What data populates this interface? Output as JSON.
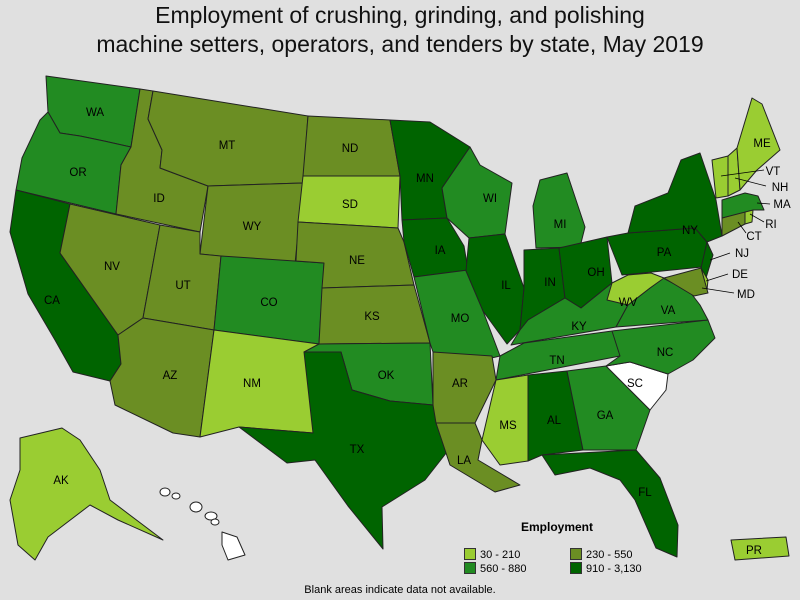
{
  "title_lines": [
    "Employment of crushing, grinding, and polishing",
    "machine setters, operators, and tenders by state, May 2019"
  ],
  "legend": {
    "title": "Employment",
    "ranges": [
      {
        "label": "30 - 210",
        "color": "#9acd32"
      },
      {
        "label": "230 - 550",
        "color": "#6b8e23"
      },
      {
        "label": "560 - 880",
        "color": "#228b22"
      },
      {
        "label": "910 - 3,130",
        "color": "#006400"
      }
    ],
    "no_data_color": "#ffffff"
  },
  "footnote": "Blank areas indicate data not available.",
  "states": [
    {
      "abbr": "WA",
      "range": "560 - 880"
    },
    {
      "abbr": "OR",
      "range": "560 - 880"
    },
    {
      "abbr": "CA",
      "range": "910 - 3,130"
    },
    {
      "abbr": "ID",
      "range": "230 - 550"
    },
    {
      "abbr": "NV",
      "range": "230 - 550"
    },
    {
      "abbr": "MT",
      "range": "230 - 550"
    },
    {
      "abbr": "WY",
      "range": "230 - 550"
    },
    {
      "abbr": "UT",
      "range": "230 - 550"
    },
    {
      "abbr": "AZ",
      "range": "230 - 550"
    },
    {
      "abbr": "CO",
      "range": "560 - 880"
    },
    {
      "abbr": "NM",
      "range": "30 - 210"
    },
    {
      "abbr": "ND",
      "range": "230 - 550"
    },
    {
      "abbr": "SD",
      "range": "30 - 210"
    },
    {
      "abbr": "NE",
      "range": "230 - 550"
    },
    {
      "abbr": "KS",
      "range": "230 - 550"
    },
    {
      "abbr": "OK",
      "range": "560 - 880"
    },
    {
      "abbr": "TX",
      "range": "910 - 3,130"
    },
    {
      "abbr": "MN",
      "range": "910 - 3,130"
    },
    {
      "abbr": "IA",
      "range": "910 - 3,130"
    },
    {
      "abbr": "MO",
      "range": "560 - 880"
    },
    {
      "abbr": "AR",
      "range": "230 - 550"
    },
    {
      "abbr": "LA",
      "range": "230 - 550"
    },
    {
      "abbr": "WI",
      "range": "560 - 880"
    },
    {
      "abbr": "IL",
      "range": "910 - 3,130"
    },
    {
      "abbr": "MI",
      "range": "560 - 880"
    },
    {
      "abbr": "IN",
      "range": "910 - 3,130"
    },
    {
      "abbr": "OH",
      "range": "910 - 3,130"
    },
    {
      "abbr": "KY",
      "range": "560 - 880"
    },
    {
      "abbr": "TN",
      "range": "560 - 880"
    },
    {
      "abbr": "MS",
      "range": "30 - 210"
    },
    {
      "abbr": "AL",
      "range": "910 - 3,130"
    },
    {
      "abbr": "GA",
      "range": "560 - 880"
    },
    {
      "abbr": "FL",
      "range": "910 - 3,130"
    },
    {
      "abbr": "SC",
      "range": null
    },
    {
      "abbr": "NC",
      "range": "560 - 880"
    },
    {
      "abbr": "VA",
      "range": "560 - 880"
    },
    {
      "abbr": "WV",
      "range": "30 - 210"
    },
    {
      "abbr": "PA",
      "range": "910 - 3,130"
    },
    {
      "abbr": "NY",
      "range": "910 - 3,130"
    },
    {
      "abbr": "NJ",
      "range": "910 - 3,130"
    },
    {
      "abbr": "DE",
      "range": "30 - 210"
    },
    {
      "abbr": "MD",
      "range": "230 - 550"
    },
    {
      "abbr": "CT",
      "range": "230 - 550"
    },
    {
      "abbr": "RI",
      "range": "30 - 210"
    },
    {
      "abbr": "MA",
      "range": "560 - 880"
    },
    {
      "abbr": "VT",
      "range": "30 - 210"
    },
    {
      "abbr": "NH",
      "range": "30 - 210"
    },
    {
      "abbr": "ME",
      "range": "30 - 210"
    },
    {
      "abbr": "AK",
      "range": "30 - 210"
    },
    {
      "abbr": "HI",
      "range": null
    },
    {
      "abbr": "PR",
      "range": "30 - 210"
    }
  ]
}
